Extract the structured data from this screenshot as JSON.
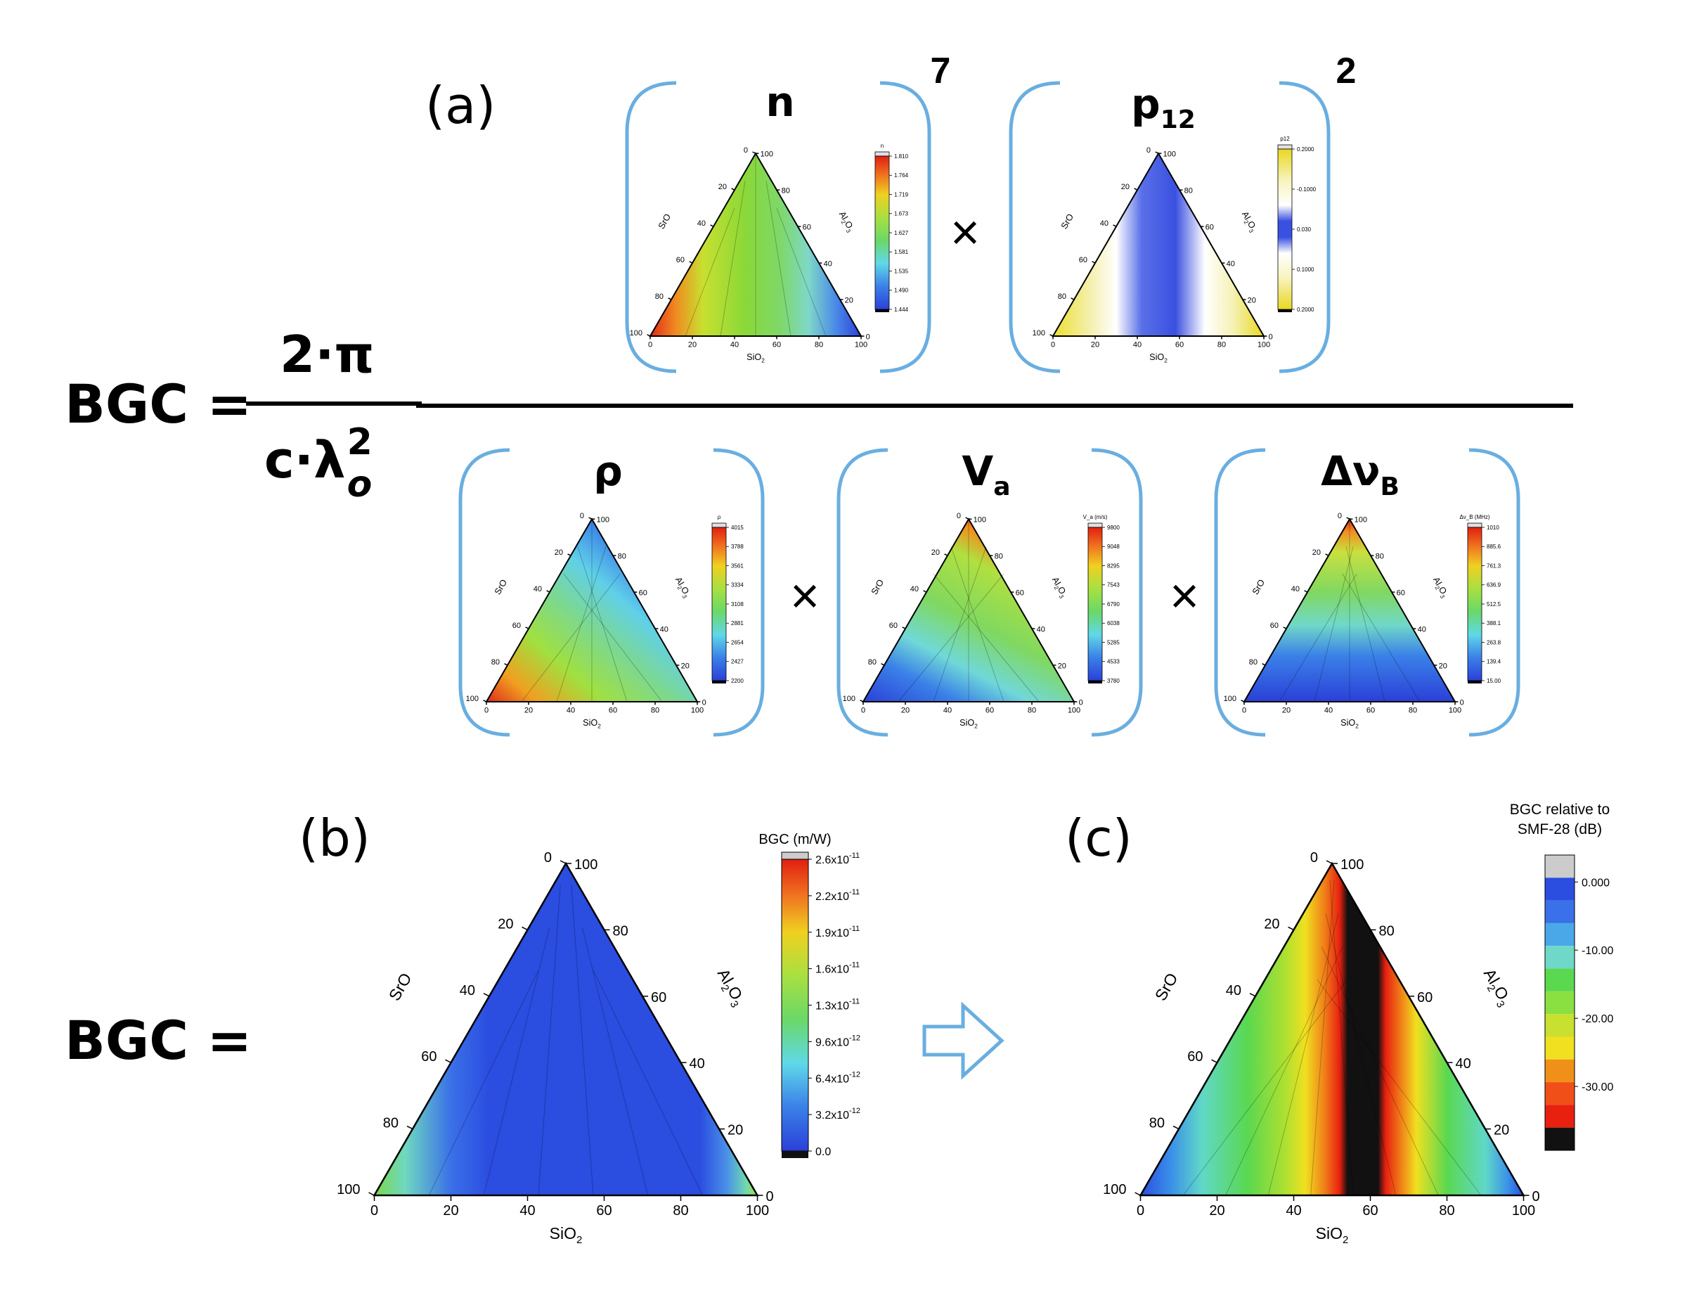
{
  "labels": {
    "panel_a": "(a)",
    "panel_b": "(b)",
    "panel_c": "(c)",
    "bgc_lhs": "BGC =",
    "numerator_const": "2·π",
    "denominator_const": "c·λ",
    "lambda_sup": "2",
    "lambda_sub": "o",
    "times": "×",
    "exp_n": "7",
    "exp_p12": "2"
  },
  "axes": {
    "left": "SrO",
    "bottom": "SiO",
    "bottom_sub": "2",
    "right_a": "Al",
    "right_sub": "2",
    "right_b": "O",
    "right_sub2": "3",
    "ticks": [
      "0",
      "20",
      "40",
      "60",
      "80",
      "100"
    ]
  },
  "small_panels": [
    {
      "name": "n",
      "title": "n",
      "title_sub": "",
      "exponent": "7",
      "cb_title": "n",
      "cb_ticks": [
        "1.810",
        "1.764",
        "1.719",
        "1.673",
        "1.627",
        "1.581",
        "1.535",
        "1.490",
        "1.444"
      ]
    },
    {
      "name": "p12",
      "title": "p",
      "title_sub": "12",
      "exponent": "2",
      "cb_title": "p12",
      "cb_ticks": [
        "0.2000",
        "-0.1000",
        "0.030",
        "0.1000",
        "0.2000"
      ]
    },
    {
      "name": "rho",
      "title": "ρ",
      "title_sub": "",
      "exponent": "",
      "cb_title": "ρ",
      "cb_ticks": [
        "4015",
        "3788",
        "3561",
        "3334",
        "3108",
        "2881",
        "2654",
        "2427",
        "2200"
      ]
    },
    {
      "name": "va",
      "title": "V",
      "title_sub": "a",
      "exponent": "",
      "cb_title": "V_a (m/s)",
      "cb_ticks": [
        "9800",
        "9048",
        "8295",
        "7543",
        "6790",
        "6038",
        "5285",
        "4533",
        "3780"
      ]
    },
    {
      "name": "dvb",
      "title": "Δν",
      "title_sub": "B",
      "exponent": "",
      "cb_title": "Δν_B (MHz)",
      "cb_ticks": [
        "1010",
        "885.6",
        "761.3",
        "636.9",
        "512.5",
        "388.1",
        "263.8",
        "139.4",
        "15.00"
      ]
    }
  ],
  "panel_b": {
    "cb_title": "BGC (m/W)",
    "cb_ticks": [
      {
        "m": "2.6x10",
        "e": "-11"
      },
      {
        "m": "2.2x10",
        "e": "-11"
      },
      {
        "m": "1.9x10",
        "e": "-11"
      },
      {
        "m": "1.6x10",
        "e": "-11"
      },
      {
        "m": "1.3x10",
        "e": "-11"
      },
      {
        "m": "9.6x10",
        "e": "-12"
      },
      {
        "m": "6.4x10",
        "e": "-12"
      },
      {
        "m": "3.2x10",
        "e": "-12"
      },
      {
        "m": "0.0",
        "e": ""
      }
    ]
  },
  "panel_c": {
    "cb_title_line1": "BGC relative to",
    "cb_title_line2": "SMF-28 (dB)",
    "cb_ticks": [
      "0.000",
      "-10.00",
      "-20.00",
      "-30.00"
    ]
  },
  "colors": {
    "bracket": "#6aaee0",
    "blue": "#2b4de0",
    "black": "#111111"
  }
}
